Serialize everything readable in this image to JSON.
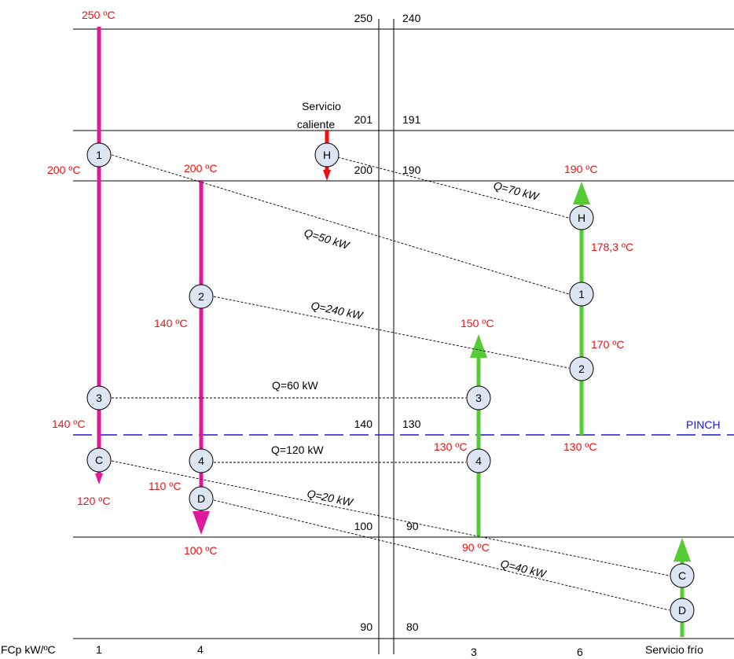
{
  "left_temps": [
    "250",
    "201",
    "200",
    "140",
    "100",
    "90"
  ],
  "right_temps": [
    "240",
    "191",
    "190",
    "130",
    "90",
    "80"
  ],
  "utility_hot_label_1": "Servicio",
  "utility_hot_label_2": "caliente",
  "pinch_label": "PINCH",
  "fcp_label": "FCp kW/ºC",
  "fcp_values": [
    "1",
    "4",
    "3",
    "6"
  ],
  "utility_cold_label": "Servicio frío",
  "colors": {
    "hot_stream": "#e0189a",
    "cold_stream": "#55cc33",
    "utility_hot": "#ee1111",
    "pinch": "#1a1acc",
    "label_red": "#ee1111",
    "node_fill": "#dde4f2"
  },
  "nodes": {
    "n1": "1",
    "n2": "2",
    "n3": "3",
    "n4": "4",
    "nC": "C",
    "nD": "D",
    "nH": "H"
  },
  "stream_temps": {
    "s1_top": "250 ºC",
    "s1_200": "200 ºC",
    "s1_140": "140 ºC",
    "s1_end": "120 ºC",
    "s4_top": "200 ºC",
    "s4_140": "140 ºC",
    "s4_110": "110 ºC",
    "s4_end": "100 ºC",
    "s3_top": "150 ºC",
    "s3_130": "130 ºC",
    "s3_start": "90 ºC",
    "s6_top": "190 ºC",
    "s6_178": "178,3 ºC",
    "s6_170": "170 ºC",
    "s6_start": "130 ºC"
  },
  "heat_loads": {
    "q_h": "Q=70 kW",
    "q_1": "Q=50 kW",
    "q_2": "Q=240 kW",
    "q_3": "Q=60 kW",
    "q_4": "Q=120 kW",
    "q_c": "Q=20 kW",
    "q_d": "Q=40 kW"
  }
}
